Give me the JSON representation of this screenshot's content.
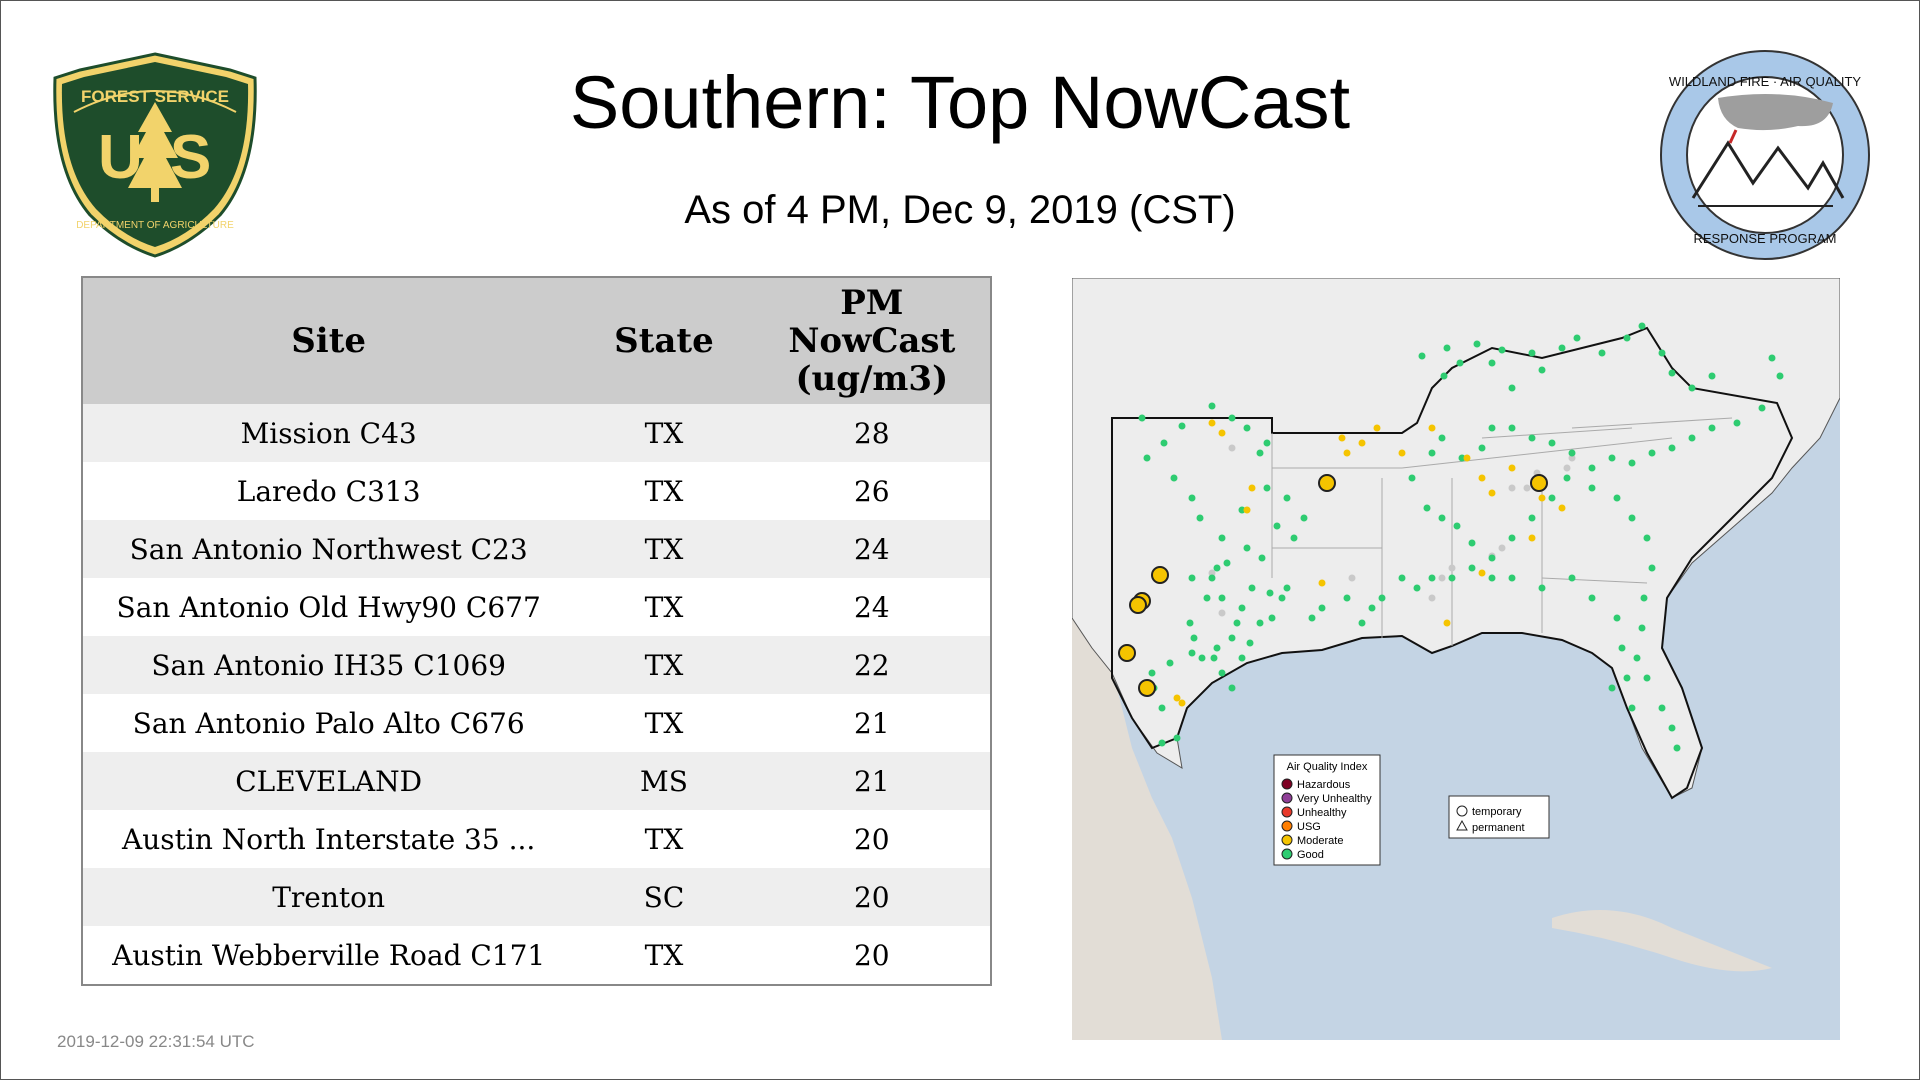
{
  "header": {
    "title": "Southern: Top NowCast",
    "subtitle": "As of  4 PM, Dec  9, 2019 (CST)"
  },
  "logos": {
    "usfs": {
      "top_text": "FOREST SERVICE",
      "letters": "U S",
      "bottom_text": "DEPARTMENT OF AGRICULTURE",
      "color_green": "#1e4d2b",
      "color_gold": "#f2d36b"
    },
    "wildland": {
      "top_text": "WILDLAND FIRE · AIR QUALITY",
      "bottom_text": "RESPONSE PROGRAM",
      "color": "#a9c8e8"
    }
  },
  "table": {
    "headers": {
      "site": "Site",
      "state": "State",
      "pm_line1": "PM",
      "pm_line2": "NowCast",
      "pm_line3": "(ug/m3)"
    },
    "rows": [
      {
        "site": "Mission C43",
        "state": "TX",
        "pm": "28"
      },
      {
        "site": "Laredo C313",
        "state": "TX",
        "pm": "26"
      },
      {
        "site": "San Antonio Northwest C23",
        "state": "TX",
        "pm": "24"
      },
      {
        "site": "San Antonio Old Hwy90 C677",
        "state": "TX",
        "pm": "24"
      },
      {
        "site": "San Antonio IH35 C1069",
        "state": "TX",
        "pm": "22"
      },
      {
        "site": "San Antonio Palo Alto C676",
        "state": "TX",
        "pm": "21"
      },
      {
        "site": "CLEVELAND",
        "state": "MS",
        "pm": "21"
      },
      {
        "site": "Austin North Interstate 35 ...",
        "state": "TX",
        "pm": "20"
      },
      {
        "site": "Trenton",
        "state": "SC",
        "pm": "20"
      },
      {
        "site": "Austin Webberville Road C171",
        "state": "TX",
        "pm": "20"
      }
    ]
  },
  "map": {
    "legend": {
      "title": "Air Quality Index",
      "items": [
        {
          "label": "Hazardous",
          "color": "#7e0023"
        },
        {
          "label": "Very Unhealthy",
          "color": "#8f3f97"
        },
        {
          "label": "Unhealthy",
          "color": "#e8392a"
        },
        {
          "label": "USG",
          "color": "#ff7e00"
        },
        {
          "label": "Moderate",
          "color": "#f5c400"
        },
        {
          "label": "Good",
          "color": "#2ecc71"
        }
      ]
    },
    "monitor_legend": {
      "temporary": "temporary",
      "permanent": "permanent"
    },
    "colors": {
      "water": "#c4d4e4",
      "land": "#ededed",
      "mexico": "#e2ddd6"
    }
  },
  "footer": {
    "timestamp": "2019-12-09 22:31:54 UTC"
  }
}
